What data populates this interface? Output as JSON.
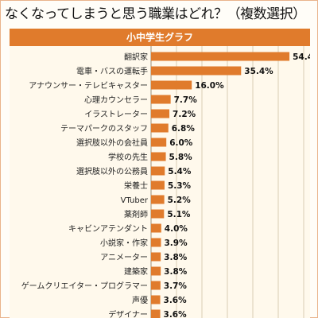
{
  "header": {
    "question": "なくなってしまうと思う職業はどれ？（複数選択）"
  },
  "chart_data": {
    "type": "bar",
    "title": "小中学生グラフ",
    "orientation": "horizontal",
    "value_suffix": "%",
    "categories": [
      "翻訳家",
      "電車・バスの運転手",
      "アナウンサー・テレビキャスター",
      "心理カウンセラー",
      "イラストレーター",
      "テーマパークのスタッフ",
      "選択肢以外の会社員",
      "学校の先生",
      "選択肢以外の公務員",
      "栄養士",
      "VTuber",
      "薬剤師",
      "キャビンアテンダント",
      "小説家・作家",
      "アニメーター",
      "建築家",
      "ゲームクリエイター・プログラマー",
      "声優",
      "デザイナー"
    ],
    "values": [
      54.4,
      35.4,
      16.0,
      7.7,
      7.2,
      6.8,
      6.0,
      5.8,
      5.4,
      5.3,
      5.2,
      5.1,
      4.0,
      3.9,
      3.8,
      3.8,
      3.7,
      3.6,
      3.6
    ],
    "xlim": [
      0,
      60
    ],
    "grid": true,
    "colors": {
      "bar": "#e07b2c",
      "title_bg": "#e07b2c",
      "panel_bg": "#fff9ec",
      "grid": "#d9cdb4"
    }
  }
}
